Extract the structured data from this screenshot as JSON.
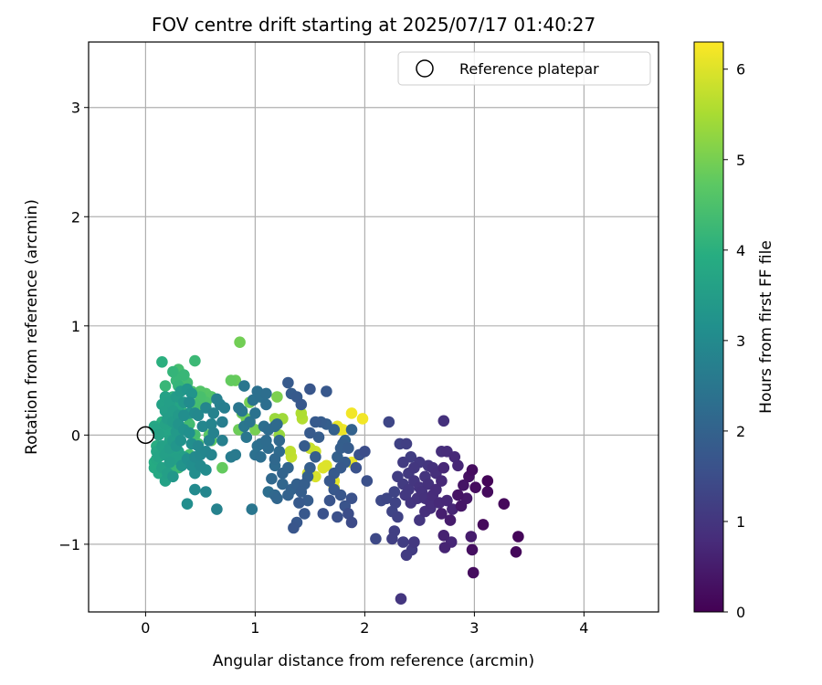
{
  "chart_data": {
    "type": "scatter",
    "title": "FOV centre drift starting at 2025/07/17 01:40:27",
    "xlabel": "Angular distance from reference (arcmin)",
    "ylabel": "Rotation from reference (arcmin)",
    "xlim": [
      -0.52,
      4.68
    ],
    "ylim": [
      -1.62,
      3.6
    ],
    "xticks": [
      0,
      1,
      2,
      3,
      4
    ],
    "yticks": [
      -1,
      0,
      1,
      2,
      3
    ],
    "xtick_labels": [
      "0",
      "1",
      "2",
      "3",
      "4"
    ],
    "ytick_labels": [
      "−1",
      "0",
      "1",
      "2",
      "3"
    ],
    "grid": true,
    "legend": {
      "placement": "top-right",
      "entries": [
        {
          "label": "Reference platepar",
          "marker": "open-circle"
        }
      ]
    },
    "reference_point": {
      "x": 0,
      "y": 0
    },
    "colorbar": {
      "label": "Hours from first FF file",
      "colormap": "viridis",
      "range": [
        0,
        6.3
      ],
      "ticks": [
        0,
        1,
        2,
        3,
        4,
        5,
        6
      ],
      "tick_labels": [
        "0",
        "1",
        "2",
        "3",
        "4",
        "5",
        "6"
      ]
    },
    "points": [
      [
        3.12,
        -0.42,
        0.08
      ],
      [
        3.4,
        -0.93,
        0.1
      ],
      [
        3.38,
        -1.07,
        0.12
      ],
      [
        3.27,
        -0.63,
        0.15
      ],
      [
        3.08,
        -0.82,
        0.15
      ],
      [
        2.99,
        -1.26,
        0.2
      ],
      [
        2.98,
        -1.05,
        0.25
      ],
      [
        3.12,
        -0.52,
        0.18
      ],
      [
        3.01,
        -0.48,
        0.2
      ],
      [
        2.98,
        -0.32,
        0.22
      ],
      [
        2.95,
        -0.38,
        0.3
      ],
      [
        2.9,
        -0.46,
        0.35
      ],
      [
        2.85,
        -0.55,
        0.35
      ],
      [
        2.88,
        -0.65,
        0.4
      ],
      [
        2.93,
        -0.58,
        0.42
      ],
      [
        2.97,
        -0.93,
        0.5
      ],
      [
        2.78,
        -0.78,
        0.5
      ],
      [
        2.7,
        -0.72,
        0.55
      ],
      [
        2.72,
        -0.92,
        0.6
      ],
      [
        2.73,
        -1.03,
        0.65
      ],
      [
        2.79,
        -0.98,
        0.7
      ],
      [
        2.68,
        -0.62,
        0.75
      ],
      [
        2.62,
        -0.55,
        0.8
      ],
      [
        2.6,
        -0.67,
        0.85
      ],
      [
        2.55,
        -0.58,
        0.9
      ],
      [
        2.5,
        -0.48,
        0.95
      ],
      [
        2.45,
        -0.42,
        1.0
      ],
      [
        2.4,
        -0.5,
        1.05
      ],
      [
        2.35,
        -0.45,
        1.1
      ],
      [
        2.3,
        -0.38,
        1.15
      ],
      [
        2.5,
        -0.78,
        1.0
      ],
      [
        2.45,
        -0.98,
        1.05
      ],
      [
        2.43,
        -1.05,
        1.1
      ],
      [
        2.38,
        -1.1,
        1.1
      ],
      [
        2.35,
        -0.98,
        1.15
      ],
      [
        2.27,
        -0.88,
        1.2
      ],
      [
        2.25,
        -0.95,
        1.2
      ],
      [
        2.33,
        -1.5,
        1.0
      ],
      [
        2.3,
        -0.75,
        1.25
      ],
      [
        2.25,
        -0.7,
        1.3
      ],
      [
        2.2,
        -0.58,
        1.35
      ],
      [
        2.27,
        -0.52,
        1.3
      ],
      [
        2.15,
        -0.6,
        1.4
      ],
      [
        2.1,
        -0.95,
        1.4
      ],
      [
        2.22,
        0.12,
        1.35
      ],
      [
        2.32,
        -0.08,
        1.25
      ],
      [
        2.38,
        -0.08,
        1.2
      ],
      [
        2.42,
        -0.2,
        1.15
      ],
      [
        2.35,
        -0.25,
        1.1
      ],
      [
        2.5,
        -0.25,
        1.05
      ],
      [
        2.58,
        -0.28,
        1.0
      ],
      [
        2.55,
        -0.38,
        0.95
      ],
      [
        2.62,
        -0.3,
        0.9
      ],
      [
        2.7,
        -0.15,
        0.85
      ],
      [
        2.75,
        -0.15,
        0.8
      ],
      [
        2.82,
        -0.2,
        0.75
      ],
      [
        2.85,
        -0.28,
        0.7
      ],
      [
        2.72,
        0.13,
        0.9
      ],
      [
        2.65,
        -0.35,
        0.85
      ],
      [
        2.58,
        -0.45,
        0.9
      ],
      [
        2.52,
        -0.52,
        0.92
      ],
      [
        2.48,
        -0.58,
        0.95
      ],
      [
        2.42,
        -0.62,
        1.0
      ],
      [
        2.37,
        -0.55,
        1.05
      ],
      [
        2.55,
        -0.7,
        0.88
      ],
      [
        2.6,
        -0.62,
        0.82
      ],
      [
        2.75,
        -0.6,
        0.72
      ],
      [
        2.8,
        -0.68,
        0.68
      ],
      [
        2.65,
        -0.5,
        0.78
      ],
      [
        2.7,
        -0.42,
        0.75
      ],
      [
        2.72,
        -0.3,
        0.72
      ],
      [
        2.4,
        -0.35,
        1.08
      ],
      [
        2.45,
        -0.3,
        1.02
      ],
      [
        2.28,
        -0.62,
        1.28
      ],
      [
        2.0,
        -0.15,
        1.5
      ],
      [
        2.02,
        -0.42,
        1.55
      ],
      [
        1.95,
        -0.18,
        1.6
      ],
      [
        1.88,
        -0.58,
        1.6
      ],
      [
        1.82,
        -0.65,
        1.65
      ],
      [
        1.78,
        -0.55,
        1.7
      ],
      [
        1.72,
        -0.5,
        1.75
      ],
      [
        1.68,
        -0.42,
        1.75
      ],
      [
        1.72,
        -0.35,
        1.8
      ],
      [
        1.78,
        -0.3,
        1.8
      ],
      [
        1.82,
        -0.25,
        1.85
      ],
      [
        1.85,
        -0.12,
        1.85
      ],
      [
        1.8,
        -0.08,
        1.9
      ],
      [
        1.78,
        -0.12,
        1.9
      ],
      [
        1.75,
        -0.2,
        1.95
      ],
      [
        1.82,
        -0.05,
        2.0
      ],
      [
        1.88,
        0.05,
        2.0
      ],
      [
        1.72,
        0.05,
        1.95
      ],
      [
        1.65,
        0.1,
        1.9
      ],
      [
        1.6,
        0.12,
        1.85
      ],
      [
        1.55,
        0.12,
        1.8
      ],
      [
        1.5,
        0.42,
        1.7
      ],
      [
        1.65,
        0.4,
        1.75
      ],
      [
        1.38,
        0.35,
        1.8
      ],
      [
        1.33,
        0.38,
        1.85
      ],
      [
        1.3,
        0.48,
        1.8
      ],
      [
        1.42,
        0.28,
        1.75
      ],
      [
        1.5,
        0.02,
        1.8
      ],
      [
        1.58,
        -0.02,
        1.85
      ],
      [
        1.45,
        -0.1,
        1.85
      ],
      [
        1.55,
        -0.2,
        1.9
      ],
      [
        1.5,
        -0.3,
        1.9
      ],
      [
        1.48,
        -0.38,
        1.95
      ],
      [
        1.45,
        -0.45,
        1.9
      ],
      [
        1.42,
        -0.52,
        1.9
      ],
      [
        1.48,
        -0.6,
        1.85
      ],
      [
        1.4,
        -0.62,
        1.8
      ],
      [
        1.38,
        -0.8,
        1.75
      ],
      [
        1.35,
        -0.85,
        1.7
      ],
      [
        1.45,
        -0.72,
        1.75
      ],
      [
        1.62,
        -0.72,
        1.6
      ],
      [
        1.68,
        -0.6,
        1.65
      ],
      [
        1.75,
        -0.75,
        1.55
      ],
      [
        1.85,
        -0.72,
        1.5
      ],
      [
        1.88,
        -0.8,
        1.45
      ],
      [
        1.92,
        -0.3,
        1.6
      ],
      [
        1.38,
        -0.45,
        1.95
      ],
      [
        1.33,
        -0.5,
        2.0
      ],
      [
        1.3,
        -0.55,
        2.0
      ],
      [
        1.25,
        -0.35,
        2.05
      ],
      [
        1.3,
        -0.3,
        2.05
      ],
      [
        1.2,
        -0.58,
        2.1
      ],
      [
        1.18,
        -0.55,
        2.15
      ],
      [
        1.25,
        -0.45,
        2.1
      ],
      [
        1.15,
        -0.4,
        2.15
      ],
      [
        1.18,
        -0.22,
        2.15
      ],
      [
        1.22,
        -0.15,
        2.2
      ],
      [
        1.12,
        -0.12,
        2.25
      ],
      [
        1.1,
        -0.05,
        2.25
      ],
      [
        1.05,
        -0.08,
        2.3
      ],
      [
        1.05,
        -0.2,
        2.3
      ],
      [
        1.0,
        -0.18,
        2.35
      ],
      [
        1.02,
        -0.1,
        2.35
      ],
      [
        1.08,
        0.08,
        2.3
      ],
      [
        1.12,
        0.05,
        2.25
      ],
      [
        1.18,
        0.08,
        2.2
      ],
      [
        1.2,
        0.1,
        2.2
      ],
      [
        1.22,
        -0.05,
        2.15
      ],
      [
        1.1,
        0.28,
        2.3
      ],
      [
        1.05,
        0.35,
        2.35
      ],
      [
        1.1,
        0.38,
        2.3
      ],
      [
        1.02,
        0.4,
        2.35
      ],
      [
        0.98,
        0.32,
        2.4
      ],
      [
        1.0,
        0.2,
        2.4
      ],
      [
        0.95,
        0.12,
        2.45
      ],
      [
        0.9,
        0.08,
        2.5
      ],
      [
        0.92,
        -0.02,
        2.5
      ],
      [
        0.88,
        0.22,
        2.55
      ],
      [
        0.85,
        0.25,
        2.5
      ],
      [
        0.9,
        0.45,
        2.5
      ],
      [
        1.12,
        -0.52,
        2.3
      ],
      [
        1.18,
        -0.28,
        2.2
      ],
      [
        0.97,
        -0.68,
        2.5
      ],
      [
        0.82,
        -0.18,
        2.6
      ],
      [
        0.78,
        -0.2,
        2.65
      ],
      [
        0.7,
        0.12,
        2.7
      ],
      [
        0.72,
        0.25,
        2.7
      ],
      [
        0.68,
        0.28,
        2.75
      ],
      [
        0.65,
        0.33,
        2.75
      ],
      [
        0.62,
        0.2,
        2.8
      ],
      [
        0.6,
        0.1,
        2.85
      ],
      [
        0.58,
        -0.05,
        2.85
      ],
      [
        0.55,
        -0.15,
        2.9
      ],
      [
        0.5,
        -0.18,
        2.95
      ],
      [
        0.48,
        -0.1,
        2.95
      ],
      [
        0.45,
        -0.2,
        3.0
      ],
      [
        0.5,
        -0.28,
        3.0
      ],
      [
        0.55,
        -0.32,
        3.05
      ],
      [
        0.45,
        -0.35,
        3.1
      ],
      [
        0.42,
        -0.28,
        3.1
      ],
      [
        0.38,
        -0.22,
        3.15
      ],
      [
        0.42,
        -0.08,
        3.1
      ],
      [
        0.4,
        0.02,
        3.15
      ],
      [
        0.35,
        0.05,
        3.2
      ],
      [
        0.3,
        0.1,
        3.25
      ],
      [
        0.65,
        -0.68,
        2.8
      ],
      [
        0.55,
        -0.52,
        2.9
      ],
      [
        0.45,
        -0.5,
        3.0
      ],
      [
        0.38,
        -0.63,
        3.1
      ],
      [
        0.25,
        -0.38,
        3.35
      ],
      [
        0.6,
        -0.18,
        2.85
      ],
      [
        0.55,
        0.25,
        2.9
      ],
      [
        0.7,
        -0.05,
        2.75
      ],
      [
        0.62,
        0.02,
        2.8
      ],
      [
        0.52,
        0.08,
        2.9
      ],
      [
        0.48,
        0.18,
        2.95
      ],
      [
        0.45,
        0.2,
        3.0
      ],
      [
        0.4,
        0.3,
        3.05
      ],
      [
        0.35,
        0.18,
        3.1
      ],
      [
        0.32,
        -0.05,
        3.2
      ],
      [
        0.28,
        -0.1,
        3.3
      ],
      [
        0.33,
        -0.28,
        3.25
      ],
      [
        0.22,
        -0.25,
        3.5
      ],
      [
        0.18,
        -0.18,
        3.55
      ],
      [
        0.15,
        -0.1,
        3.6
      ],
      [
        0.12,
        0.0,
        3.65
      ],
      [
        0.1,
        0.05,
        3.7
      ],
      [
        0.08,
        0.08,
        3.75
      ],
      [
        0.1,
        -0.15,
        3.75
      ],
      [
        0.12,
        -0.2,
        3.7
      ],
      [
        0.15,
        -0.3,
        3.65
      ],
      [
        0.18,
        -0.42,
        3.6
      ],
      [
        0.2,
        -0.35,
        3.55
      ],
      [
        0.22,
        -0.12,
        3.5
      ],
      [
        0.25,
        -0.05,
        3.45
      ],
      [
        0.28,
        0.03,
        3.4
      ],
      [
        0.25,
        0.12,
        3.45
      ],
      [
        0.2,
        0.15,
        3.5
      ],
      [
        0.18,
        0.22,
        3.55
      ],
      [
        0.15,
        0.28,
        3.6
      ],
      [
        0.18,
        0.35,
        3.6
      ],
      [
        0.22,
        0.3,
        3.55
      ],
      [
        0.25,
        0.22,
        3.5
      ],
      [
        0.3,
        0.18,
        3.4
      ],
      [
        0.28,
        0.35,
        3.45
      ],
      [
        0.32,
        0.4,
        3.4
      ],
      [
        0.35,
        0.3,
        3.35
      ],
      [
        0.4,
        0.2,
        3.3
      ],
      [
        0.38,
        0.42,
        3.3
      ],
      [
        0.42,
        0.38,
        3.25
      ],
      [
        0.12,
        -0.35,
        3.8
      ],
      [
        0.08,
        -0.3,
        3.85
      ],
      [
        0.1,
        -0.22,
        3.8
      ],
      [
        0.15,
        0.05,
        3.75
      ],
      [
        0.2,
        0.02,
        3.7
      ],
      [
        0.3,
        -0.15,
        3.6
      ],
      [
        0.35,
        -0.2,
        3.55
      ],
      [
        0.28,
        -0.22,
        3.55
      ],
      [
        0.22,
        -0.05,
        3.65
      ],
      [
        0.25,
        -0.15,
        3.6
      ],
      [
        0.32,
        0.05,
        3.55
      ],
      [
        0.18,
        0.1,
        3.65
      ],
      [
        0.25,
        0.05,
        3.7
      ],
      [
        0.3,
        0.25,
        3.7
      ],
      [
        0.08,
        -0.25,
        3.9
      ],
      [
        0.1,
        -0.1,
        3.95
      ],
      [
        0.15,
        0.12,
        4.0
      ],
      [
        0.2,
        0.28,
        4.05
      ],
      [
        0.25,
        0.35,
        4.1
      ],
      [
        0.3,
        0.45,
        4.15
      ],
      [
        0.35,
        0.55,
        4.2
      ],
      [
        0.28,
        0.5,
        4.2
      ],
      [
        0.25,
        0.58,
        4.15
      ],
      [
        0.22,
        -0.2,
        4.05
      ],
      [
        0.35,
        0.2,
        4.3
      ],
      [
        0.4,
        0.1,
        4.35
      ],
      [
        0.45,
        0.28,
        4.4
      ],
      [
        0.5,
        0.35,
        4.45
      ],
      [
        0.55,
        0.3,
        4.5
      ],
      [
        0.45,
        0.0,
        4.4
      ],
      [
        0.35,
        -0.25,
        4.3
      ],
      [
        0.3,
        -0.3,
        4.25
      ],
      [
        0.2,
        -0.35,
        4.1
      ],
      [
        0.25,
        -0.28,
        4.2
      ],
      [
        0.4,
        -0.18,
        4.45
      ],
      [
        0.48,
        -0.08,
        4.55
      ],
      [
        0.6,
        0.35,
        4.6
      ],
      [
        0.5,
        0.25,
        4.55
      ],
      [
        0.42,
        0.4,
        4.5
      ],
      [
        0.3,
        0.3,
        4.3
      ],
      [
        0.22,
        0.15,
        4.2
      ],
      [
        0.18,
        0.45,
        4.2
      ],
      [
        0.15,
        0.67,
        4.0
      ],
      [
        0.45,
        0.68,
        4.25
      ],
      [
        0.3,
        0.6,
        4.4
      ],
      [
        0.38,
        0.48,
        4.35
      ],
      [
        0.78,
        0.5,
        4.8
      ],
      [
        0.82,
        0.5,
        4.85
      ],
      [
        0.88,
        0.2,
        4.9
      ],
      [
        0.85,
        0.05,
        4.9
      ],
      [
        0.92,
        0.15,
        4.95
      ],
      [
        1.0,
        0.05,
        5.0
      ],
      [
        0.95,
        0.3,
        5.0
      ],
      [
        1.05,
        0.35,
        5.05
      ],
      [
        1.2,
        0.35,
        5.05
      ],
      [
        0.86,
        0.85,
        4.95
      ],
      [
        0.7,
        -0.3,
        4.8
      ],
      [
        0.6,
        -0.05,
        4.75
      ],
      [
        0.58,
        0.0,
        4.7
      ],
      [
        0.55,
        0.38,
        4.65
      ],
      [
        0.5,
        0.4,
        4.6
      ],
      [
        0.42,
        0.2,
        4.55
      ],
      [
        0.6,
        0.35,
        4.7
      ],
      [
        1.43,
        0.15,
        5.6
      ],
      [
        1.42,
        0.2,
        5.55
      ],
      [
        1.32,
        -0.15,
        5.7
      ],
      [
        1.33,
        -0.2,
        5.75
      ],
      [
        1.5,
        -0.12,
        5.8
      ],
      [
        1.55,
        -0.15,
        5.85
      ],
      [
        1.48,
        -0.35,
        5.9
      ],
      [
        1.55,
        -0.38,
        5.95
      ],
      [
        1.62,
        -0.3,
        6.0
      ],
      [
        1.65,
        -0.28,
        6.0
      ],
      [
        1.72,
        -0.42,
        6.05
      ],
      [
        1.72,
        -0.48,
        6.05
      ],
      [
        1.75,
        0.08,
        6.1
      ],
      [
        1.78,
        0.05,
        6.15
      ],
      [
        1.8,
        0.05,
        6.2
      ],
      [
        1.88,
        0.2,
        6.2
      ],
      [
        1.98,
        0.15,
        6.2
      ],
      [
        1.88,
        -0.25,
        6.1
      ],
      [
        1.22,
        0.0,
        5.3
      ],
      [
        1.25,
        0.15,
        5.4
      ],
      [
        1.18,
        0.15,
        5.35
      ]
    ]
  }
}
